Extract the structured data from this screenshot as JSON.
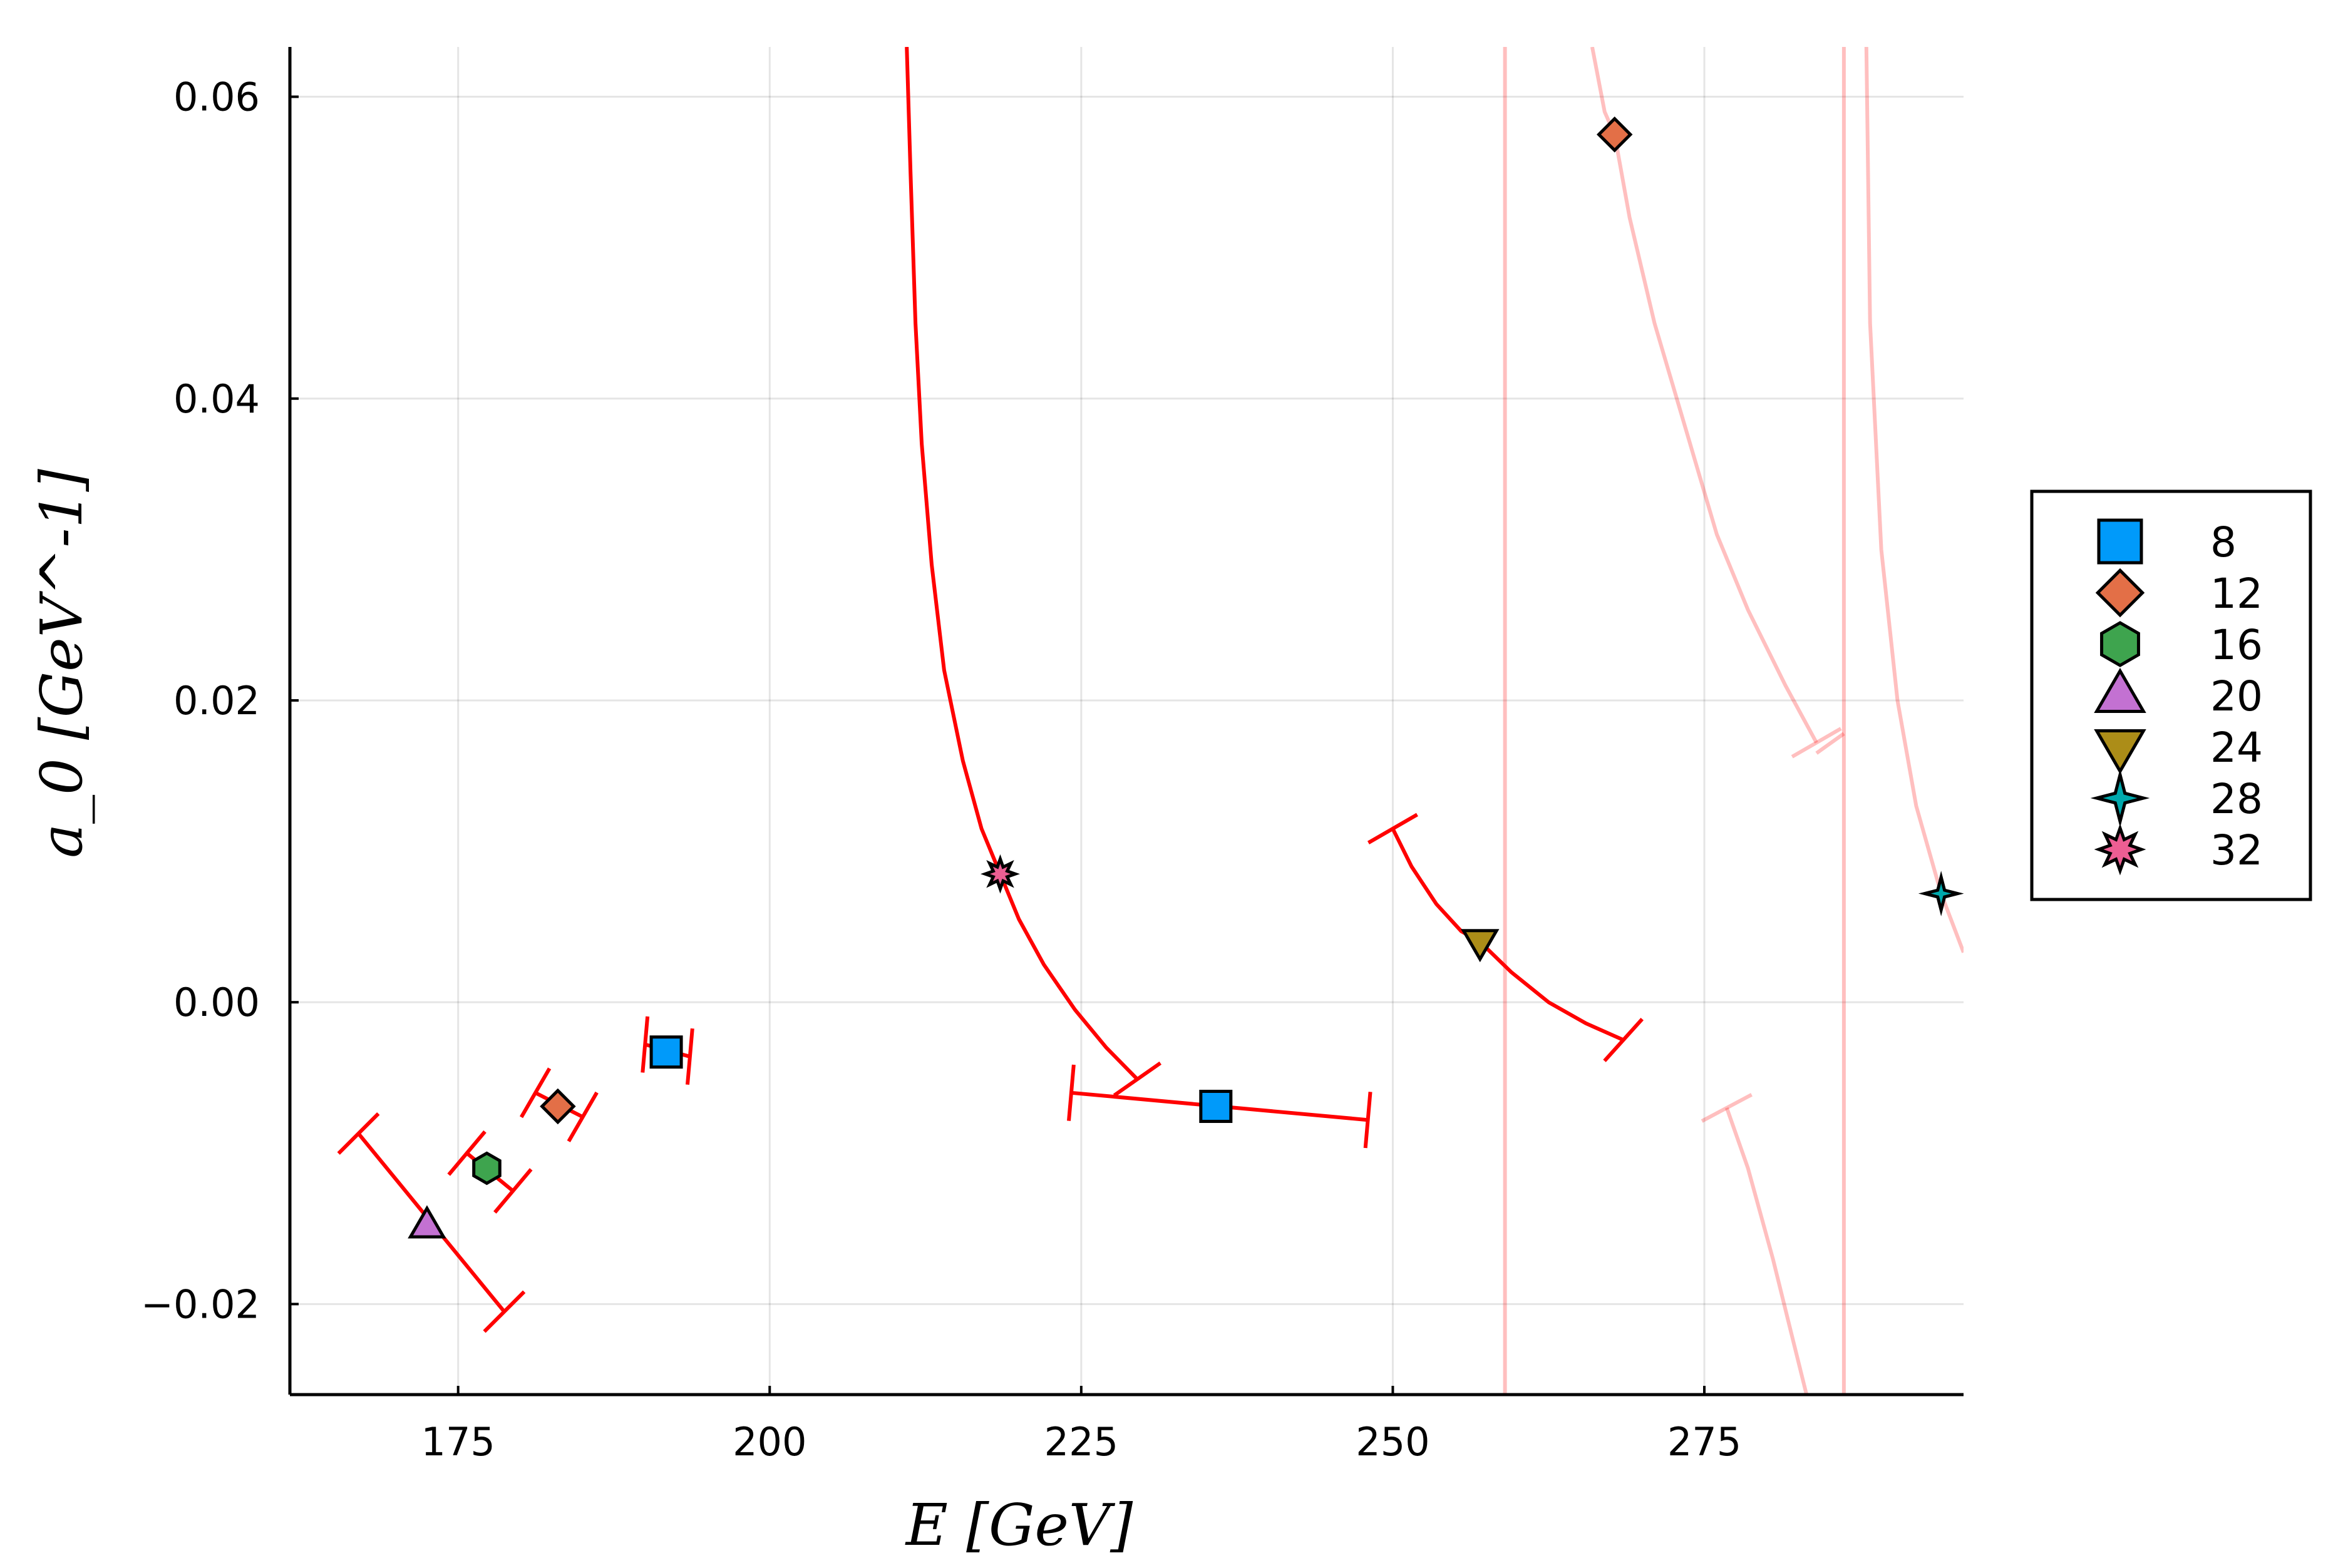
{
  "chart_data": {
    "type": "scatter",
    "title": "",
    "xlabel": "E  [GeV]",
    "ylabel": "a_0  [GeV^-1]",
    "xlim": [
      161.5,
      295.8
    ],
    "ylim": [
      -0.026,
      0.0633
    ],
    "xticks": [
      175,
      200,
      225,
      250,
      275
    ],
    "yticks": [
      -0.02,
      0.0,
      0.02,
      0.04,
      0.06
    ],
    "xtick_labels": [
      "175",
      "200",
      "225",
      "250",
      "275"
    ],
    "ytick_labels": [
      "−0.02",
      "0.00",
      "0.02",
      "0.04",
      "0.06"
    ],
    "grid": true,
    "legend_position": "outer right",
    "points": [
      {
        "name": "8",
        "x": 191.7,
        "y": -0.0033,
        "marker": "square",
        "color": "#009AFA"
      },
      {
        "name": "8",
        "x": 235.8,
        "y": -0.0069,
        "marker": "square",
        "color": "#009AFA"
      },
      {
        "name": "12",
        "x": 183.0,
        "y": -0.0069,
        "marker": "diamond",
        "color": "#E36F47"
      },
      {
        "name": "12",
        "x": 267.8,
        "y": 0.0575,
        "marker": "diamond",
        "color": "#E36F47"
      },
      {
        "name": "16",
        "x": 177.3,
        "y": -0.011,
        "marker": "hexagon",
        "color": "#3EA44E"
      },
      {
        "name": "20",
        "x": 172.5,
        "y": -0.0148,
        "marker": "utriangle",
        "color": "#C371D2"
      },
      {
        "name": "24",
        "x": 257.0,
        "y": 0.004,
        "marker": "dtriangle",
        "color": "#AC8D18"
      },
      {
        "name": "28",
        "x": 294.0,
        "y": 0.0072,
        "marker": "star4",
        "color": "#00A9AD"
      },
      {
        "name": "32",
        "x": 218.5,
        "y": 0.0085,
        "marker": "star8",
        "color": "#ED5E93"
      }
    ],
    "error_bars": [
      {
        "from": [
          190.0,
          -0.0028
        ],
        "to": [
          193.6,
          -0.0036
        ]
      },
      {
        "from": [
          181.2,
          -0.006
        ],
        "to": [
          185.0,
          -0.0076
        ]
      },
      {
        "from": [
          175.7,
          -0.01
        ],
        "to": [
          179.4,
          -0.0125
        ]
      },
      {
        "from": [
          167.0,
          -0.0087
        ],
        "to": [
          178.7,
          -0.0205
        ]
      },
      {
        "from": [
          224.2,
          -0.006
        ],
        "to": [
          248.0,
          -0.0078
        ]
      }
    ],
    "curves": [
      {
        "color": "#FF0000",
        "opacity": 1.0,
        "points": [
          [
            211.0,
            0.0633
          ],
          [
            211.3,
            0.055
          ],
          [
            211.7,
            0.045
          ],
          [
            212.2,
            0.037
          ],
          [
            213.0,
            0.029
          ],
          [
            214.0,
            0.022
          ],
          [
            215.5,
            0.016
          ],
          [
            217.0,
            0.0115
          ],
          [
            218.5,
            0.0085
          ],
          [
            220.0,
            0.0055
          ],
          [
            222.0,
            0.0025
          ],
          [
            224.5,
            -0.0005
          ],
          [
            227.0,
            -0.003
          ],
          [
            229.5,
            -0.0051
          ]
        ]
      },
      {
        "color": "#FF0000",
        "opacity": 1.0,
        "points": [
          [
            250.0,
            0.0115
          ],
          [
            251.5,
            0.009
          ],
          [
            253.5,
            0.0065
          ],
          [
            255.5,
            0.0047
          ],
          [
            257.0,
            0.004
          ],
          [
            259.5,
            0.002
          ],
          [
            262.5,
            0.0
          ],
          [
            265.5,
            -0.0014
          ],
          [
            268.5,
            -0.0025
          ]
        ]
      },
      {
        "color": "#FF0000",
        "opacity": 0.25,
        "points": [
          [
            266.0,
            0.0633
          ],
          [
            267.0,
            0.059
          ],
          [
            267.8,
            0.0575
          ],
          [
            269.0,
            0.052
          ],
          [
            271.0,
            0.045
          ],
          [
            273.5,
            0.038
          ],
          [
            276.0,
            0.031
          ],
          [
            278.5,
            0.026
          ],
          [
            281.5,
            0.021
          ],
          [
            284.0,
            0.0172
          ]
        ]
      },
      {
        "color": "#FF0000",
        "opacity": 0.25,
        "points": [
          [
            286.2,
            0.0178
          ],
          [
            284.0,
            0.0165
          ]
        ]
      },
      {
        "color": "#FF0000",
        "opacity": 0.25,
        "points": [
          [
            288.0,
            0.0633
          ],
          [
            288.3,
            0.045
          ],
          [
            289.2,
            0.03
          ],
          [
            290.5,
            0.02
          ],
          [
            292.0,
            0.013
          ],
          [
            294.0,
            0.0072
          ],
          [
            295.8,
            0.0033
          ]
        ]
      },
      {
        "color": "#FF0000",
        "opacity": 0.25,
        "points": [
          [
            276.8,
            -0.007
          ],
          [
            278.5,
            -0.011
          ],
          [
            280.5,
            -0.017
          ],
          [
            282.0,
            -0.022
          ],
          [
            283.2,
            -0.026
          ]
        ]
      },
      {
        "color": "#FF0000",
        "opacity": 0.25,
        "points": [
          [
            259.0,
            0.0633
          ],
          [
            259.0,
            -0.026
          ]
        ]
      },
      {
        "color": "#FF0000",
        "opacity": 0.25,
        "points": [
          [
            286.2,
            0.0633
          ],
          [
            286.2,
            -0.026
          ]
        ]
      }
    ],
    "caps": [
      {
        "at": [
          190.0,
          -0.0028
        ],
        "angle": 85,
        "opacity": 1.0
      },
      {
        "at": [
          193.6,
          -0.0036
        ],
        "angle": 85,
        "opacity": 1.0
      },
      {
        "at": [
          181.2,
          -0.006
        ],
        "angle": 60,
        "opacity": 1.0
      },
      {
        "at": [
          185.0,
          -0.0076
        ],
        "angle": 60,
        "opacity": 1.0
      },
      {
        "at": [
          175.7,
          -0.01
        ],
        "angle": 50,
        "opacity": 1.0
      },
      {
        "at": [
          179.4,
          -0.0125
        ],
        "angle": 50,
        "opacity": 1.0
      },
      {
        "at": [
          167.0,
          -0.0087
        ],
        "angle": 45,
        "opacity": 1.0
      },
      {
        "at": [
          178.7,
          -0.0205
        ],
        "angle": 45,
        "opacity": 1.0
      },
      {
        "at": [
          224.2,
          -0.006
        ],
        "angle": 85,
        "opacity": 1.0
      },
      {
        "at": [
          248.0,
          -0.0078
        ],
        "angle": 85,
        "opacity": 1.0
      },
      {
        "at": [
          229.5,
          -0.0051
        ],
        "angle": 35,
        "opacity": 1.0
      },
      {
        "at": [
          250.0,
          0.0115
        ],
        "angle": 30,
        "opacity": 1.0
      },
      {
        "at": [
          268.5,
          -0.0025
        ],
        "angle": 48,
        "opacity": 1.0
      },
      {
        "at": [
          284.0,
          0.0172
        ],
        "angle": 30,
        "opacity": 0.25
      },
      {
        "at": [
          276.8,
          -0.007
        ],
        "angle": 28,
        "opacity": 0.25
      }
    ],
    "legend": [
      {
        "label": "8",
        "marker": "square",
        "color": "#009AFA"
      },
      {
        "label": "12",
        "marker": "diamond",
        "color": "#E36F47"
      },
      {
        "label": "16",
        "marker": "hexagon",
        "color": "#3EA44E"
      },
      {
        "label": "20",
        "marker": "utriangle",
        "color": "#C371D2"
      },
      {
        "label": "24",
        "marker": "dtriangle",
        "color": "#AC8D18"
      },
      {
        "label": "28",
        "marker": "star4",
        "color": "#00A9AD"
      },
      {
        "label": "32",
        "marker": "star8",
        "color": "#ED5E93"
      }
    ]
  }
}
